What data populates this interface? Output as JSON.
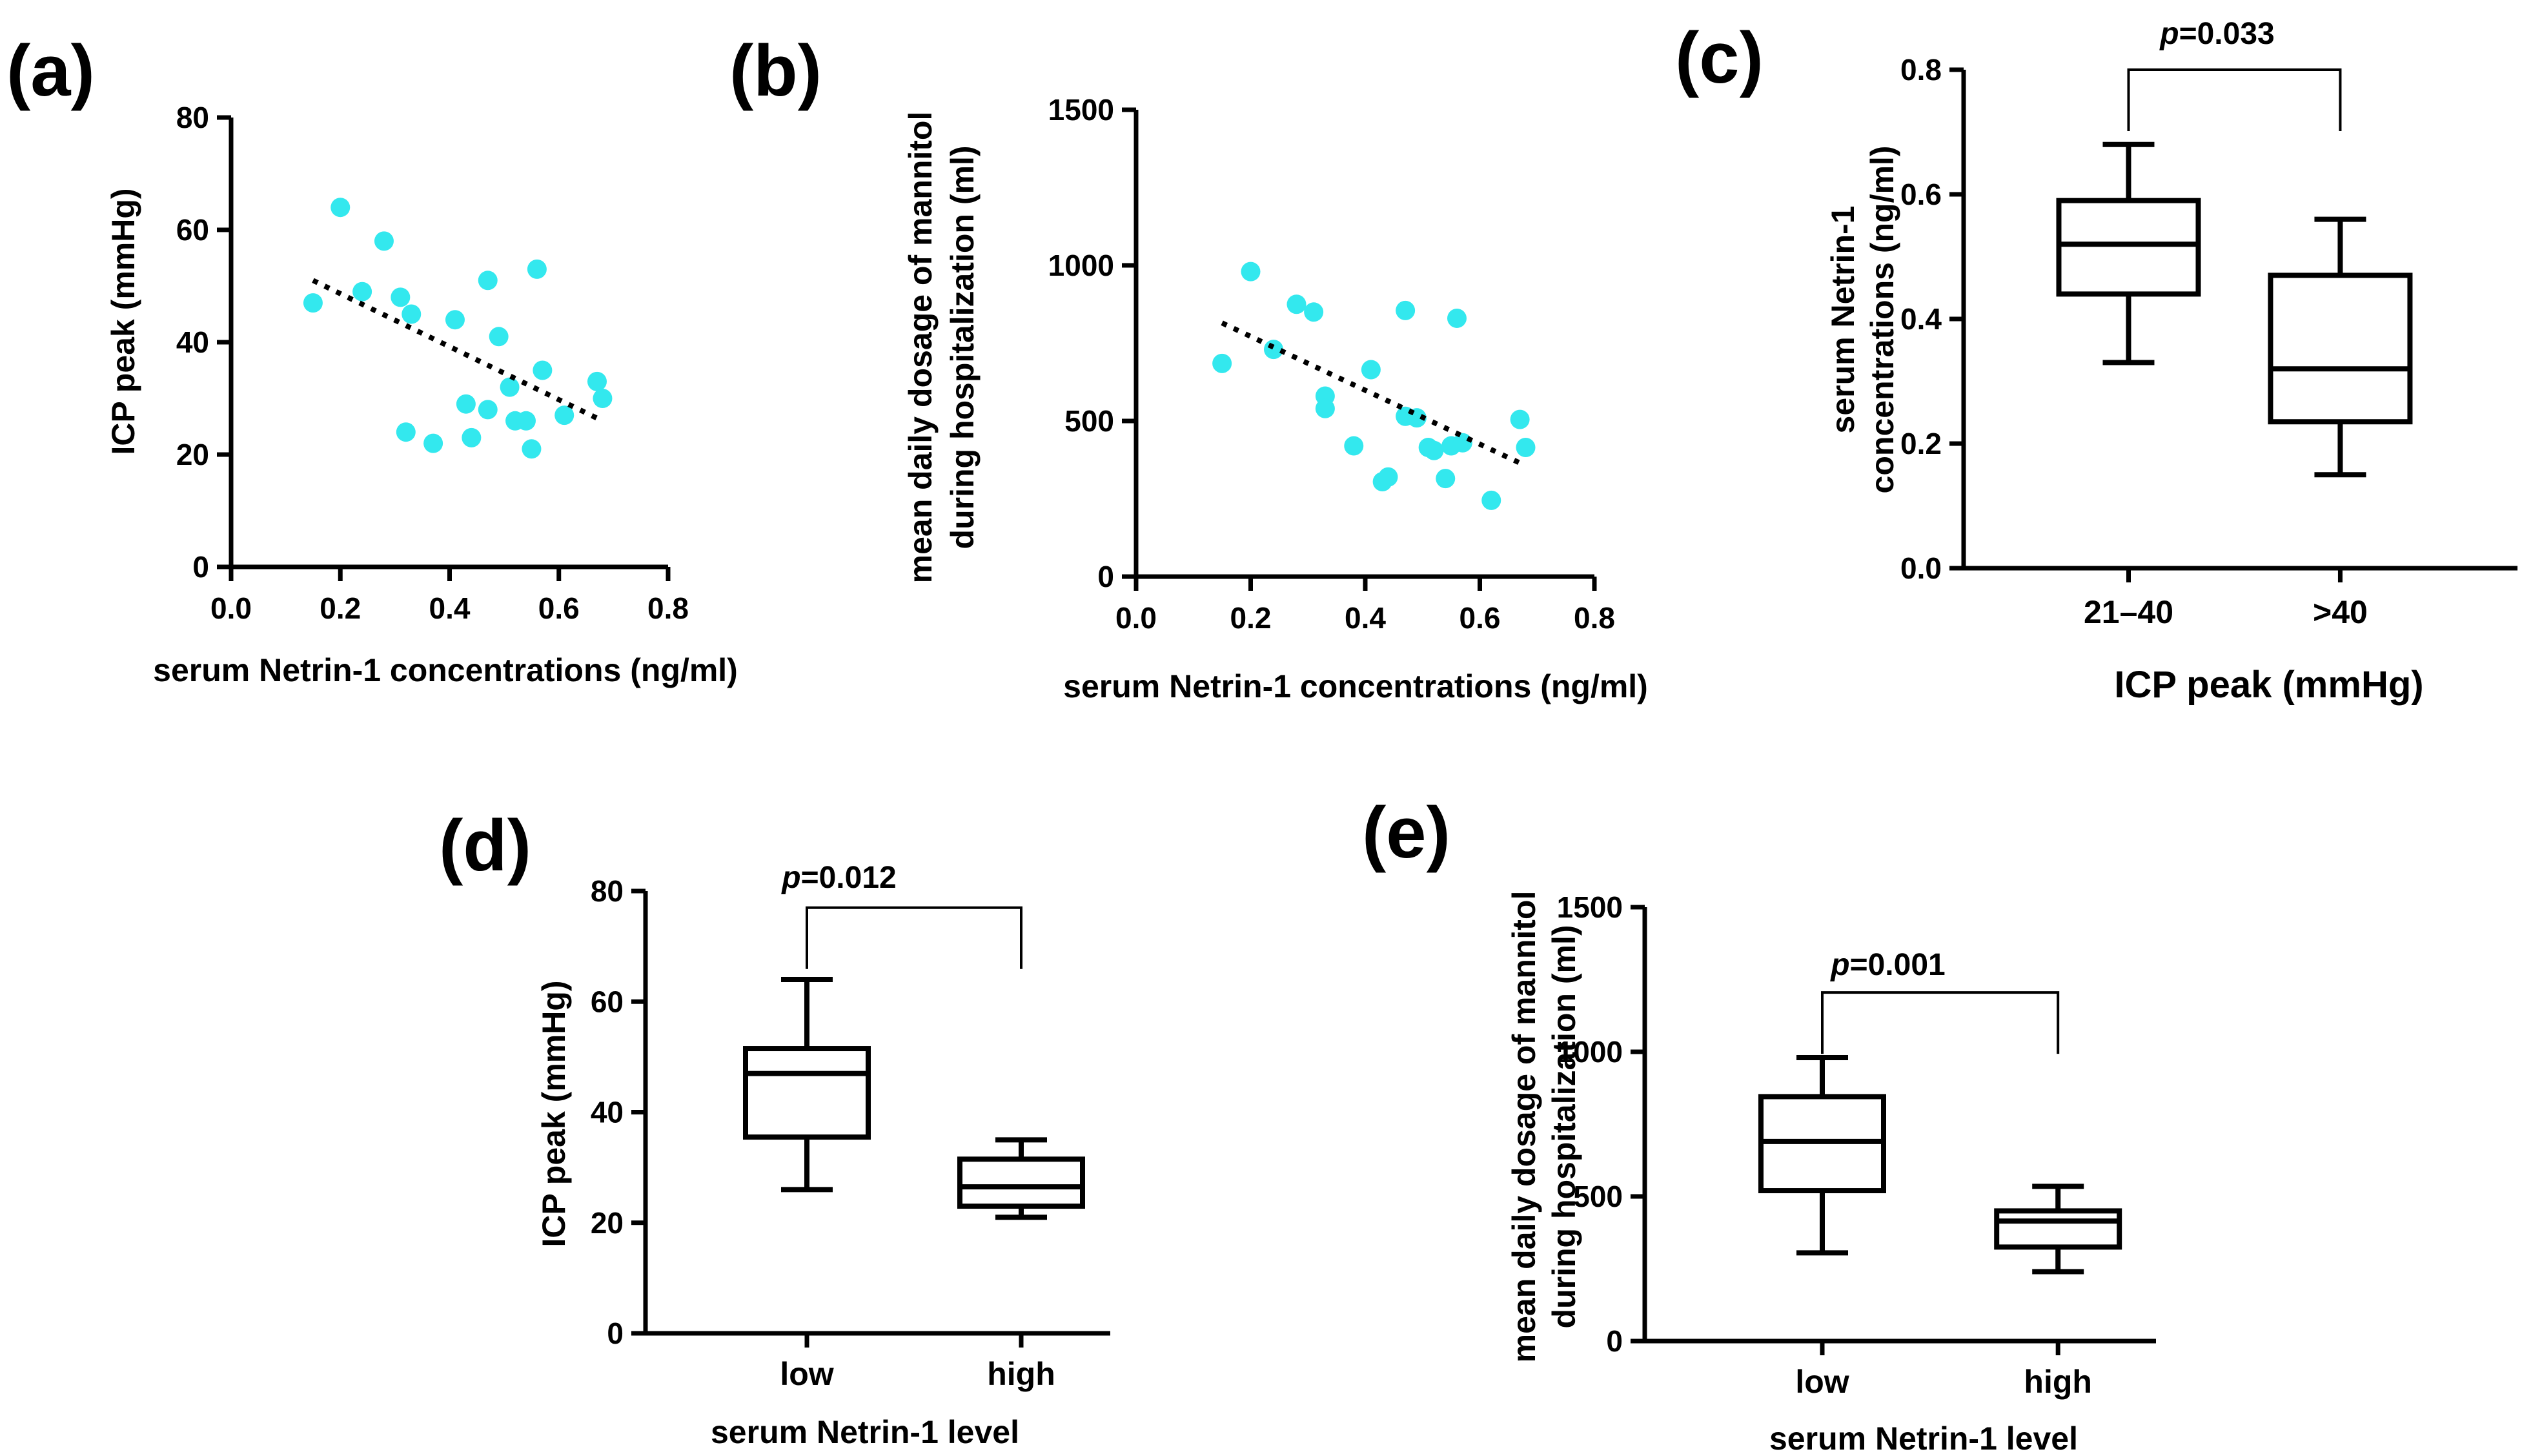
{
  "chart_data": [
    {
      "id": "a",
      "panel_label": "(a)",
      "type": "scatter",
      "xlabel": "serum Netrin-1 concentrations (ng/ml)",
      "ylabel": "ICP peak (mmHg)",
      "xlim": [
        0,
        0.8
      ],
      "ylim": [
        0,
        80
      ],
      "xticks": [
        "0.0",
        "0.2",
        "0.4",
        "0.6",
        "0.8"
      ],
      "yticks": [
        "0",
        "20",
        "40",
        "60",
        "80"
      ],
      "point_color": "#33e8ee",
      "points": [
        [
          0.15,
          47
        ],
        [
          0.2,
          64
        ],
        [
          0.24,
          49
        ],
        [
          0.28,
          58
        ],
        [
          0.31,
          48
        ],
        [
          0.33,
          45
        ],
        [
          0.32,
          24
        ],
        [
          0.37,
          22
        ],
        [
          0.41,
          44
        ],
        [
          0.43,
          29
        ],
        [
          0.44,
          23
        ],
        [
          0.47,
          51
        ],
        [
          0.47,
          28
        ],
        [
          0.49,
          41
        ],
        [
          0.51,
          32
        ],
        [
          0.52,
          26
        ],
        [
          0.54,
          26
        ],
        [
          0.55,
          21
        ],
        [
          0.56,
          53
        ],
        [
          0.57,
          35
        ],
        [
          0.61,
          27
        ],
        [
          0.67,
          33
        ],
        [
          0.68,
          30
        ]
      ],
      "trendline": [
        [
          0.15,
          51
        ],
        [
          0.68,
          26
        ]
      ]
    },
    {
      "id": "b",
      "panel_label": "(b)",
      "type": "scatter",
      "xlabel": "serum Netrin-1 concentrations (ng/ml)",
      "ylabel_lines": [
        "mean daily dosage of mannitol",
        "during hospitalization  (ml)"
      ],
      "xlim": [
        0,
        0.8
      ],
      "ylim": [
        0,
        1500
      ],
      "xticks": [
        "0.0",
        "0.2",
        "0.4",
        "0.6",
        "0.8"
      ],
      "yticks": [
        "0",
        "500",
        "1000",
        "1500"
      ],
      "point_color": "#33e8ee",
      "points": [
        [
          0.15,
          685
        ],
        [
          0.2,
          980
        ],
        [
          0.24,
          730
        ],
        [
          0.28,
          875
        ],
        [
          0.31,
          850
        ],
        [
          0.33,
          580
        ],
        [
          0.33,
          540
        ],
        [
          0.38,
          420
        ],
        [
          0.41,
          665
        ],
        [
          0.43,
          305
        ],
        [
          0.44,
          320
        ],
        [
          0.47,
          855
        ],
        [
          0.47,
          515
        ],
        [
          0.49,
          510
        ],
        [
          0.51,
          415
        ],
        [
          0.52,
          405
        ],
        [
          0.54,
          315
        ],
        [
          0.55,
          420
        ],
        [
          0.56,
          830
        ],
        [
          0.57,
          430
        ],
        [
          0.62,
          245
        ],
        [
          0.67,
          505
        ],
        [
          0.68,
          415
        ]
      ],
      "trendline": [
        [
          0.15,
          815
        ],
        [
          0.67,
          365
        ]
      ]
    },
    {
      "id": "c",
      "panel_label": "(c)",
      "type": "box",
      "xlabel": "ICP peak (mmHg)",
      "ylabel_lines": [
        "serum Netrin-1",
        "concentrations (ng/ml)"
      ],
      "ylim": [
        0,
        0.8
      ],
      "yticks": [
        "0.0",
        "0.2",
        "0.4",
        "0.6",
        "0.8"
      ],
      "categories": [
        "21–40",
        ">40"
      ],
      "boxes": [
        {
          "min": 0.33,
          "q1": 0.44,
          "median": 0.52,
          "q3": 0.59,
          "max": 0.68
        },
        {
          "min": 0.15,
          "q1": 0.235,
          "median": 0.32,
          "q3": 0.47,
          "max": 0.56
        }
      ],
      "pvalue": {
        "p": "p",
        "value": "=0.033",
        "bracket_y": 0.8
      },
      "box_x": [
        0.42,
        1.28
      ],
      "x_range": [
        0,
        2.25
      ]
    },
    {
      "id": "d",
      "panel_label": "(d)",
      "type": "box",
      "xlabel": "serum Netrin-1 level",
      "ylabel": "ICP peak (mmHg)",
      "ylim": [
        0,
        80
      ],
      "yticks": [
        "0",
        "20",
        "40",
        "60",
        "80"
      ],
      "categories": [
        "low",
        "high"
      ],
      "boxes": [
        {
          "min": 26,
          "q1": 35.5,
          "median": 47,
          "q3": 51.5,
          "max": 64
        },
        {
          "min": 21,
          "q1": 23,
          "median": 26.5,
          "q3": 31.5,
          "max": 35
        }
      ],
      "pvalue": {
        "p": "p",
        "value": "=0.012",
        "bracket_y": 77
      },
      "box_x": [
        0.4,
        1.23
      ],
      "x_range": [
        0,
        1.8
      ]
    },
    {
      "id": "e",
      "panel_label": "(e)",
      "type": "box",
      "xlabel": "serum Netrin-1 level",
      "ylabel_lines": [
        "mean daily dosage of mannitol",
        "during hospitalization  (ml)"
      ],
      "ylim": [
        0,
        1500
      ],
      "yticks": [
        "0",
        "500",
        "1000",
        "1500"
      ],
      "categories": [
        "low",
        "high"
      ],
      "boxes": [
        {
          "min": 305,
          "q1": 520,
          "median": 690,
          "q3": 845,
          "max": 980
        },
        {
          "min": 240,
          "q1": 325,
          "median": 415,
          "q3": 450,
          "max": 535
        }
      ],
      "pvalue": {
        "p": "p",
        "value": "=0.001",
        "bracket_y": 1205
      },
      "box_x": [
        0.4,
        1.23
      ],
      "x_range": [
        0,
        1.8
      ]
    }
  ]
}
